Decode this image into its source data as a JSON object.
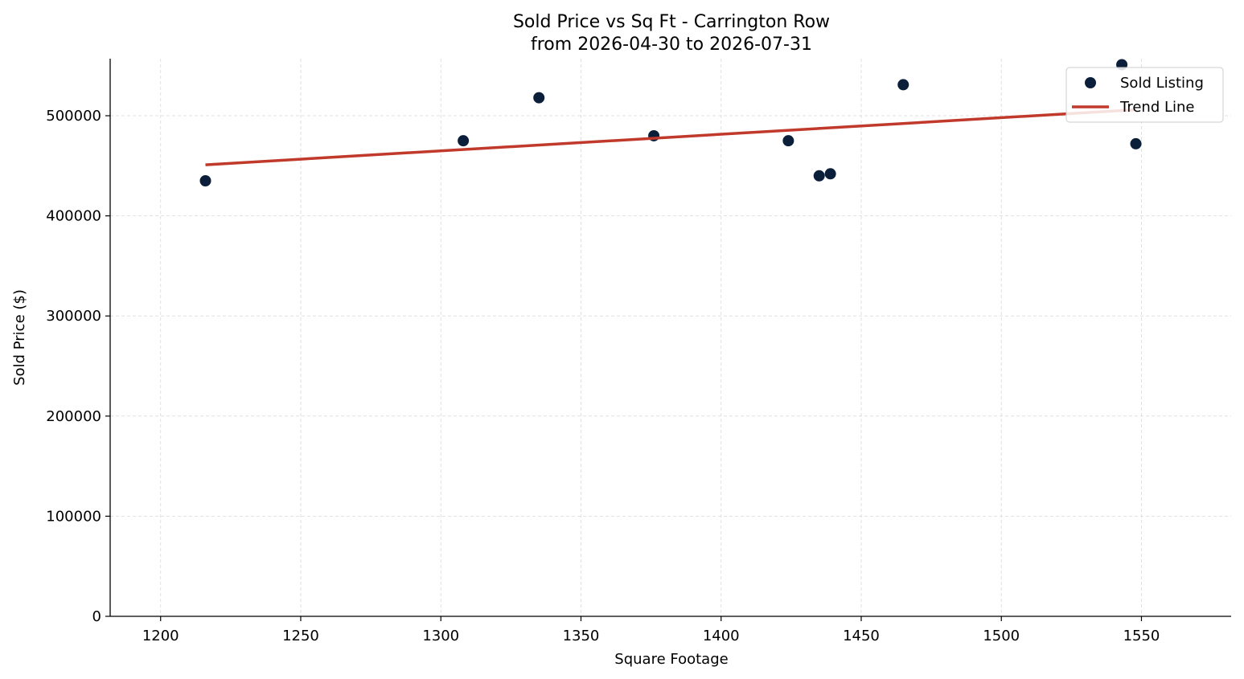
{
  "chart_data": {
    "type": "scatter",
    "title": "Sold Price vs Sq Ft - Carrington Row",
    "subtitle": "from 2026-04-30 to 2026-07-31",
    "xlabel": "Square Footage",
    "ylabel": "Sold Price ($)",
    "xlim": [
      1182,
      1582
    ],
    "ylim": [
      0,
      557000
    ],
    "xticks": [
      1200,
      1250,
      1300,
      1350,
      1400,
      1450,
      1500,
      1550
    ],
    "yticks": [
      0,
      100000,
      200000,
      300000,
      400000,
      500000
    ],
    "grid": true,
    "legend_position": "top-right",
    "series": [
      {
        "name": "Sold Listing",
        "kind": "scatter",
        "color": "#0b1f3a",
        "points": [
          {
            "x": 1216,
            "y": 435000
          },
          {
            "x": 1308,
            "y": 475000
          },
          {
            "x": 1335,
            "y": 518000
          },
          {
            "x": 1376,
            "y": 480000
          },
          {
            "x": 1424,
            "y": 475000
          },
          {
            "x": 1435,
            "y": 440000
          },
          {
            "x": 1439,
            "y": 442000
          },
          {
            "x": 1465,
            "y": 531000
          },
          {
            "x": 1543,
            "y": 551000
          },
          {
            "x": 1548,
            "y": 472000
          }
        ]
      },
      {
        "name": "Trend Line",
        "kind": "line",
        "color": "#c0392b",
        "points": [
          {
            "x": 1216,
            "y": 451000
          },
          {
            "x": 1548,
            "y": 506000
          }
        ]
      }
    ]
  }
}
